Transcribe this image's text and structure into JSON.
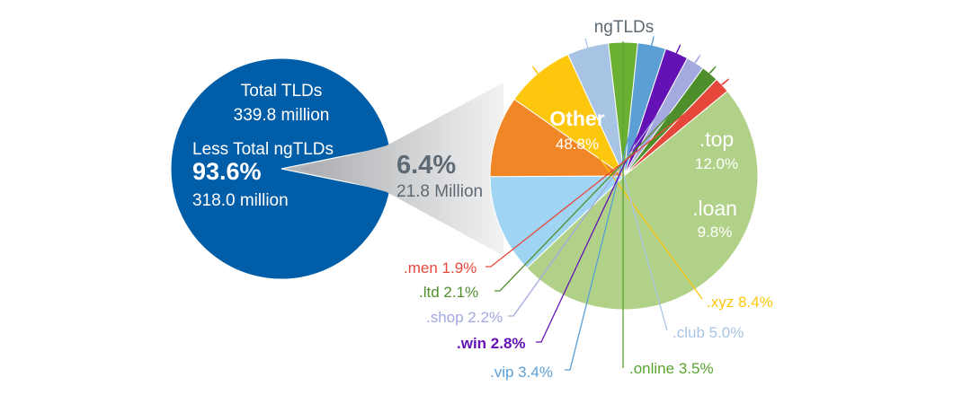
{
  "chart_data": [
    {
      "type": "pie",
      "title": "",
      "total_label": "Total TLDs",
      "total_value": "339.8 million",
      "slices": [
        {
          "name": "Less Total ngTLDs",
          "value": 93.6,
          "value_label": "93.6%",
          "detail": "318.0 million",
          "color": "#005ea8"
        },
        {
          "name": "ngTLDs",
          "value": 6.4,
          "value_label": "6.4%",
          "detail": "21.8 Million",
          "color": "#b3b5b8"
        }
      ]
    },
    {
      "type": "pie",
      "title": "ngTLDs",
      "slices": [
        {
          "name": "Other",
          "value": 48.8,
          "label": "48.8%",
          "color": "#b1d189",
          "text_color": "#ffffff"
        },
        {
          "name": ".top",
          "value": 12.0,
          "label": "12.0%",
          "color": "#9fd5f3",
          "text_color": "#ffffff"
        },
        {
          "name": ".loan",
          "value": 9.8,
          "label": "9.8%",
          "color": "#f08626",
          "text_color": "#ffffff"
        },
        {
          "name": ".xyz",
          "value": 8.4,
          "label": ".xyz 8.4%",
          "color": "#fdc70d",
          "text_color": "#fdc70d"
        },
        {
          "name": ".club",
          "value": 5.0,
          "label": ".club 5.0%",
          "color": "#a8c4e4",
          "text_color": "#a8c4e4"
        },
        {
          "name": ".online",
          "value": 3.5,
          "label": ".online 3.5%",
          "color": "#6bb033",
          "text_color": "#5aa32e"
        },
        {
          "name": ".vip",
          "value": 3.4,
          "label": ".vip 3.4%",
          "color": "#5b9fd4",
          "text_color": "#5b9fd4"
        },
        {
          "name": ".win",
          "value": 2.8,
          "label": ".win 2.8%",
          "color": "#6412b6",
          "text_color": "#6412b6"
        },
        {
          "name": ".shop",
          "value": 2.2,
          "label": ".shop 2.2%",
          "color": "#a4a9e0",
          "text_color": "#a4a9e0"
        },
        {
          "name": ".ltd",
          "value": 2.1,
          "label": ".ltd 2.1%",
          "color": "#4e8f2c",
          "text_color": "#4e8f2c"
        },
        {
          "name": ".men",
          "value": 1.9,
          "label": ".men 1.9%",
          "color": "#e5483b",
          "text_color": "#e5483b"
        }
      ]
    }
  ]
}
